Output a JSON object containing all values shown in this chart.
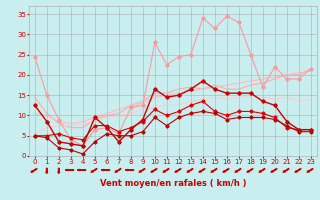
{
  "background_color": "#c8eef0",
  "grid_color": "#b0b0b0",
  "xlabel": "Vent moyen/en rafales ( km/h )",
  "xlabel_color": "#cc0000",
  "xlabel_fontsize": 6,
  "xtick_fontsize": 5,
  "ytick_fontsize": 5,
  "ytick_color": "#cc0000",
  "xtick_color": "#cc0000",
  "xlim": [
    -0.5,
    23.5
  ],
  "ylim": [
    0,
    37
  ],
  "yticks": [
    0,
    5,
    10,
    15,
    20,
    25,
    30,
    35
  ],
  "xticks": [
    0,
    1,
    2,
    3,
    4,
    5,
    6,
    7,
    8,
    9,
    10,
    11,
    12,
    13,
    14,
    15,
    16,
    17,
    18,
    19,
    20,
    21,
    22,
    23
  ],
  "lines": [
    {
      "x": [
        0,
        1,
        2,
        3,
        4,
        5,
        6,
        7,
        8,
        9,
        10,
        11,
        12,
        13,
        14,
        15,
        16,
        17,
        18,
        19,
        20,
        21,
        22,
        23
      ],
      "y": [
        24.5,
        15.0,
        9.0,
        4.0,
        2.5,
        6.5,
        7.0,
        5.5,
        12.0,
        12.5,
        28.0,
        22.5,
        24.5,
        25.0,
        34.0,
        31.5,
        34.5,
        33.0,
        25.0,
        17.0,
        22.0,
        19.0,
        19.0,
        21.5
      ],
      "color": "#ff9999",
      "lw": 0.8,
      "marker": "D",
      "markersize": 1.8,
      "zorder": 2
    },
    {
      "x": [
        0,
        1,
        2,
        3,
        4,
        5,
        6,
        7,
        8,
        9,
        10,
        11,
        12,
        13,
        14,
        15,
        16,
        17,
        18,
        19,
        20,
        21,
        22,
        23
      ],
      "y": [
        14.5,
        10.5,
        8.0,
        7.0,
        7.0,
        9.0,
        10.0,
        10.5,
        12.5,
        13.5,
        15.5,
        15.5,
        16.5,
        17.0,
        16.5,
        17.5,
        16.5,
        16.5,
        17.5,
        18.0,
        19.0,
        20.0,
        20.0,
        21.5
      ],
      "color": "#ffaaaa",
      "lw": 0.8,
      "marker": null,
      "markersize": 0,
      "zorder": 1
    },
    {
      "x": [
        0,
        1,
        2,
        3,
        4,
        5,
        6,
        7,
        8,
        9,
        10,
        11,
        12,
        13,
        14,
        15,
        16,
        17,
        18,
        19,
        20,
        21,
        22,
        23
      ],
      "y": [
        10.5,
        10.0,
        8.5,
        8.0,
        8.5,
        9.5,
        10.5,
        11.5,
        12.5,
        13.0,
        14.5,
        15.0,
        15.5,
        16.0,
        16.5,
        17.0,
        17.5,
        18.0,
        18.5,
        19.0,
        19.5,
        20.0,
        20.5,
        21.0
      ],
      "color": "#ffbbbb",
      "lw": 0.8,
      "marker": null,
      "markersize": 0,
      "zorder": 1
    },
    {
      "x": [
        0,
        1,
        2,
        3,
        4,
        5,
        6,
        7,
        8,
        9,
        10,
        11,
        12,
        13,
        14,
        15,
        16,
        17,
        18,
        19,
        20,
        21,
        22,
        23
      ],
      "y": [
        5.5,
        7.0,
        7.5,
        7.5,
        8.0,
        8.5,
        9.5,
        10.0,
        10.5,
        11.5,
        12.0,
        12.5,
        12.5,
        13.5,
        14.0,
        14.5,
        14.0,
        14.5,
        14.5,
        14.5,
        14.0,
        14.5,
        13.5,
        14.0
      ],
      "color": "#ffcccc",
      "lw": 0.8,
      "marker": null,
      "markersize": 0,
      "zorder": 1
    },
    {
      "x": [
        0,
        1,
        2,
        3,
        4,
        5,
        6,
        7,
        8,
        9,
        10,
        11,
        12,
        13,
        14,
        15,
        16,
        17,
        18,
        19,
        20,
        21,
        22,
        23
      ],
      "y": [
        12.5,
        8.5,
        3.5,
        3.0,
        2.5,
        9.5,
        7.0,
        3.5,
        6.5,
        9.0,
        16.5,
        14.5,
        15.0,
        16.5,
        18.5,
        16.5,
        15.5,
        15.5,
        15.5,
        13.5,
        12.5,
        8.5,
        6.5,
        6.5
      ],
      "color": "#cc0000",
      "lw": 1.0,
      "marker": "D",
      "markersize": 1.8,
      "zorder": 3
    },
    {
      "x": [
        0,
        1,
        2,
        3,
        4,
        5,
        6,
        7,
        8,
        9,
        10,
        11,
        12,
        13,
        14,
        15,
        16,
        17,
        18,
        19,
        20,
        21,
        22,
        23
      ],
      "y": [
        5.0,
        5.0,
        5.5,
        4.5,
        4.0,
        7.5,
        7.5,
        6.0,
        7.0,
        8.5,
        11.5,
        10.0,
        11.0,
        12.5,
        13.5,
        11.0,
        10.0,
        11.0,
        11.0,
        10.5,
        9.5,
        7.0,
        6.5,
        6.5
      ],
      "color": "#dd0000",
      "lw": 0.8,
      "marker": "D",
      "markersize": 1.6,
      "zorder": 2
    },
    {
      "x": [
        0,
        1,
        2,
        3,
        4,
        5,
        6,
        7,
        8,
        9,
        10,
        11,
        12,
        13,
        14,
        15,
        16,
        17,
        18,
        19,
        20,
        21,
        22,
        23
      ],
      "y": [
        5.0,
        4.5,
        2.0,
        1.5,
        0.5,
        3.5,
        5.5,
        5.0,
        5.0,
        6.0,
        9.5,
        7.5,
        9.5,
        10.5,
        11.0,
        10.5,
        9.0,
        9.5,
        9.5,
        9.5,
        9.0,
        7.5,
        6.0,
        6.0
      ],
      "color": "#bb0000",
      "lw": 0.8,
      "marker": "D",
      "markersize": 1.6,
      "zorder": 2
    }
  ],
  "arrow_color": "#cc0000",
  "arrow_angles": [
    225,
    270,
    270,
    180,
    180,
    225,
    180,
    225,
    180,
    225,
    225,
    225,
    225,
    225,
    225,
    225,
    225,
    225,
    225,
    225,
    225,
    225,
    225,
    225
  ]
}
